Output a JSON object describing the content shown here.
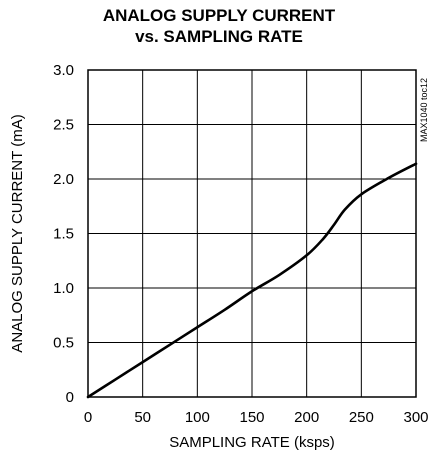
{
  "chart_data": {
    "type": "line",
    "title_line1": "ANALOG SUPPLY CURRENT",
    "title_line2": "vs. SAMPLING RATE",
    "xlabel": "SAMPLING RATE (ksps)",
    "ylabel": "ANALOG SUPPLY CURRENT (mA)",
    "annotation": "MAX1040 toc12",
    "xlim": [
      0,
      300
    ],
    "ylim": [
      0,
      3.0
    ],
    "x_ticks": [
      0,
      50,
      100,
      150,
      200,
      250,
      300
    ],
    "x_tick_labels": [
      "0",
      "50",
      "100",
      "150",
      "200",
      "250",
      "300"
    ],
    "y_ticks": [
      0,
      0.5,
      1.0,
      1.5,
      2.0,
      2.5,
      3.0
    ],
    "y_tick_labels": [
      "0",
      "0.5",
      "1.0",
      "1.5",
      "2.0",
      "2.5",
      "3.0"
    ],
    "grid": true,
    "series": [
      {
        "x": [
          0,
          25,
          50,
          75,
          100,
          125,
          150,
          175,
          200,
          215,
          225,
          235,
          250,
          275,
          300
        ],
        "y": [
          0,
          0.16,
          0.32,
          0.48,
          0.64,
          0.8,
          0.97,
          1.12,
          1.3,
          1.45,
          1.58,
          1.72,
          1.86,
          2.01,
          2.14
        ]
      }
    ]
  }
}
